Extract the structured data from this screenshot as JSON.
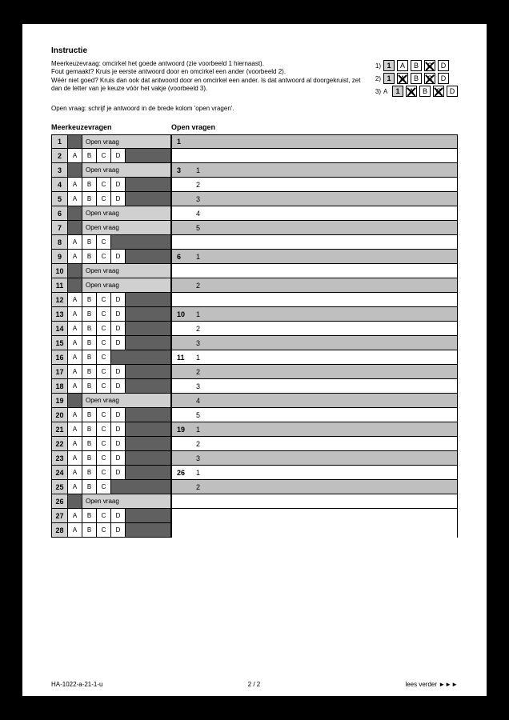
{
  "title": "Instructie",
  "instructions": [
    "Meerkeuzevraag: omcirkel het goede antwoord (zie voorbeeld 1 hiernaast).",
    "Fout gemaakt? Kruis je eerste antwoord door en omcirkel een ander (voorbeeld 2).",
    "Wéér niet goed? Kruis dan ook dat antwoord door en omcirkel een ander. Is dat antwoord al doorgekruist, zet dan de letter van je keuze vóór het vakje (voorbeeld 3)."
  ],
  "example_labels": [
    "1)",
    "2)",
    "3)"
  ],
  "example_numbers": [
    "1",
    "1",
    "1"
  ],
  "example_options": [
    "A",
    "B",
    "C",
    "D"
  ],
  "example_prefix": "A",
  "sub_instruction": "Open vraag: schrijf je antwoord in de brede kolom 'open vragen'.",
  "left_header": "Meerkeuzevragen",
  "right_header": "Open vragen",
  "opts4": [
    "A",
    "B",
    "C",
    "D"
  ],
  "opts3": [
    "A",
    "B",
    "C"
  ],
  "open_label": "Open vraag",
  "rows": [
    {
      "n": "1",
      "type": "open"
    },
    {
      "n": "2",
      "type": "mc",
      "count": 4
    },
    {
      "n": "3",
      "type": "open"
    },
    {
      "n": "4",
      "type": "mc",
      "count": 4
    },
    {
      "n": "5",
      "type": "mc",
      "count": 4
    },
    {
      "n": "6",
      "type": "open"
    },
    {
      "n": "7",
      "type": "open"
    },
    {
      "n": "8",
      "type": "mc",
      "count": 3
    },
    {
      "n": "9",
      "type": "mc",
      "count": 4
    },
    {
      "n": "10",
      "type": "open"
    },
    {
      "n": "11",
      "type": "open"
    },
    {
      "n": "12",
      "type": "mc",
      "count": 4
    },
    {
      "n": "13",
      "type": "mc",
      "count": 4
    },
    {
      "n": "14",
      "type": "mc",
      "count": 4
    },
    {
      "n": "15",
      "type": "mc",
      "count": 4
    },
    {
      "n": "16",
      "type": "mc",
      "count": 3
    },
    {
      "n": "17",
      "type": "mc",
      "count": 4
    },
    {
      "n": "18",
      "type": "mc",
      "count": 4
    },
    {
      "n": "19",
      "type": "open"
    },
    {
      "n": "20",
      "type": "mc",
      "count": 4
    },
    {
      "n": "21",
      "type": "mc",
      "count": 4
    },
    {
      "n": "22",
      "type": "mc",
      "count": 4
    },
    {
      "n": "23",
      "type": "mc",
      "count": 4
    },
    {
      "n": "24",
      "type": "mc",
      "count": 4
    },
    {
      "n": "25",
      "type": "mc",
      "count": 3
    },
    {
      "n": "26",
      "type": "open"
    },
    {
      "n": "27",
      "type": "mc",
      "count": 4
    },
    {
      "n": "28",
      "type": "mc",
      "count": 4
    }
  ],
  "open_answers": [
    {
      "q": "1",
      "shade": true,
      "pts": ""
    },
    {
      "q": "",
      "shade": false
    },
    {
      "q": "3",
      "shade": true,
      "pts": "1"
    },
    {
      "q": "",
      "shade": false,
      "pts": "2"
    },
    {
      "q": "",
      "shade": true,
      "pts": "3"
    },
    {
      "q": "",
      "shade": false,
      "pts": "4"
    },
    {
      "q": "",
      "shade": true,
      "pts": "5"
    },
    {
      "q": "",
      "shade": false
    },
    {
      "q": "6",
      "shade": true,
      "pts": "1"
    },
    {
      "q": "",
      "shade": false
    },
    {
      "q": "",
      "shade": true,
      "pts": "2"
    },
    {
      "q": "",
      "shade": false
    },
    {
      "q": "10",
      "shade": true,
      "pts": "1"
    },
    {
      "q": "",
      "shade": false,
      "pts": "2"
    },
    {
      "q": "",
      "shade": true,
      "pts": "3"
    },
    {
      "q": "11",
      "shade": false,
      "pts": "1"
    },
    {
      "q": "",
      "shade": true,
      "pts": "2"
    },
    {
      "q": "",
      "shade": false,
      "pts": "3"
    },
    {
      "q": "",
      "shade": true,
      "pts": "4"
    },
    {
      "q": "",
      "shade": false,
      "pts": "5"
    },
    {
      "q": "19",
      "shade": true,
      "pts": "1"
    },
    {
      "q": "",
      "shade": false,
      "pts": "2"
    },
    {
      "q": "",
      "shade": true,
      "pts": "3"
    },
    {
      "q": "26",
      "shade": false,
      "pts": "1"
    },
    {
      "q": "",
      "shade": true,
      "pts": "2"
    },
    {
      "q": "",
      "shade": false
    }
  ],
  "footer_left": "HA-1022-a-21-1-u",
  "footer_center": "2 / 2",
  "footer_right": "lees verder ►►►"
}
